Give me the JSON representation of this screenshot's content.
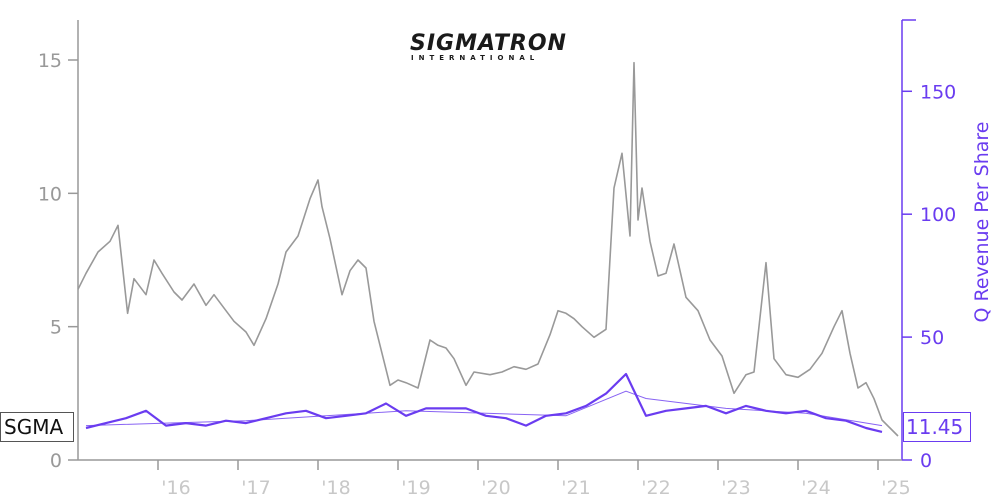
{
  "logo": {
    "main": "SIGMATRON",
    "sub": "INTERNATIONAL"
  },
  "ticker": "SGMA",
  "last_value": "11.45",
  "colors": {
    "price": "#999999",
    "revenue": "#6a3cf0",
    "revenue_light": "#b9a2f5"
  },
  "chart_data": {
    "type": "line",
    "ylabel_right": "Q Revenue Per Share",
    "x_ticks": [
      "'16",
      "'17",
      "'18",
      "'19",
      "'20",
      "'21",
      "'22",
      "'23",
      "'24",
      "'25"
    ],
    "x_tick_years": [
      2016,
      2017,
      2018,
      2019,
      2020,
      2021,
      2022,
      2023,
      2024,
      2025
    ],
    "x_range": [
      2015.0,
      2025.3
    ],
    "y_left": {
      "range": [
        0,
        16.5
      ],
      "ticks": [
        0,
        5,
        10,
        15
      ]
    },
    "y_right": {
      "range": [
        0,
        179
      ],
      "ticks": [
        0,
        50,
        100,
        150
      ]
    },
    "series": [
      {
        "axis": "left",
        "x": [
          2015.0,
          2015.1,
          2015.25,
          2015.4,
          2015.5,
          2015.62,
          2015.7,
          2015.85,
          2015.95,
          2016.05,
          2016.2,
          2016.3,
          2016.45,
          2016.6,
          2016.7,
          2016.85,
          2016.95,
          2017.1,
          2017.2,
          2017.35,
          2017.5,
          2017.6,
          2017.75,
          2017.9,
          2018.0,
          2018.05,
          2018.15,
          2018.3,
          2018.4,
          2018.5,
          2018.6,
          2018.7,
          2018.8,
          2018.9,
          2019.0,
          2019.1,
          2019.25,
          2019.4,
          2019.5,
          2019.6,
          2019.7,
          2019.85,
          2019.95,
          2020.15,
          2020.3,
          2020.45,
          2020.6,
          2020.75,
          2020.9,
          2021.0,
          2021.1,
          2021.2,
          2021.3,
          2021.45,
          2021.6,
          2021.7,
          2021.8,
          2021.9,
          2021.95,
          2022.0,
          2022.05,
          2022.15,
          2022.25,
          2022.35,
          2022.45,
          2022.6,
          2022.75,
          2022.9,
          2023.05,
          2023.2,
          2023.35,
          2023.45,
          2023.6,
          2023.7,
          2023.85,
          2024.0,
          2024.15,
          2024.3,
          2024.45,
          2024.55,
          2024.65,
          2024.75,
          2024.85,
          2024.95,
          2025.05,
          2025.15,
          2025.25
        ],
        "values": [
          6.4,
          7.0,
          7.8,
          8.2,
          8.8,
          5.5,
          6.8,
          6.2,
          7.5,
          7.0,
          6.3,
          6.0,
          6.6,
          5.8,
          6.2,
          5.6,
          5.2,
          4.8,
          4.3,
          5.3,
          6.6,
          7.8,
          8.4,
          9.8,
          10.5,
          9.5,
          8.3,
          6.2,
          7.1,
          7.5,
          7.2,
          5.2,
          4.0,
          2.8,
          3.0,
          2.9,
          2.7,
          4.5,
          4.3,
          4.2,
          3.8,
          2.8,
          3.3,
          3.2,
          3.3,
          3.5,
          3.4,
          3.6,
          4.7,
          5.6,
          5.5,
          5.3,
          5.0,
          4.6,
          4.9,
          10.2,
          11.5,
          8.4,
          14.9,
          9.0,
          10.2,
          8.2,
          6.9,
          7.0,
          8.1,
          6.1,
          5.6,
          4.5,
          3.9,
          2.5,
          3.2,
          3.3,
          7.4,
          3.8,
          3.2,
          3.1,
          3.4,
          4.0,
          5.0,
          5.6,
          4.0,
          2.7,
          2.9,
          2.3,
          1.5,
          1.2,
          0.9
        ]
      },
      {
        "axis": "right",
        "x": [
          2015.1,
          2015.35,
          2015.6,
          2015.85,
          2016.1,
          2016.35,
          2016.6,
          2016.85,
          2017.1,
          2017.35,
          2017.6,
          2017.85,
          2018.1,
          2018.35,
          2018.6,
          2018.85,
          2019.1,
          2019.35,
          2019.6,
          2019.85,
          2020.1,
          2020.35,
          2020.6,
          2020.85,
          2021.1,
          2021.35,
          2021.6,
          2021.85,
          2022.1,
          2022.35,
          2022.6,
          2022.85,
          2023.1,
          2023.35,
          2023.6,
          2023.85,
          2024.1,
          2024.35,
          2024.6,
          2024.85,
          2025.05
        ],
        "values": [
          13,
          15,
          17,
          20,
          14,
          15,
          14,
          16,
          15,
          17,
          19,
          20,
          17,
          18,
          19,
          23,
          18,
          21,
          21,
          21,
          18,
          17,
          14,
          18,
          19,
          22,
          27,
          35,
          18,
          20,
          21,
          22,
          19,
          22,
          20,
          19,
          20,
          17,
          16,
          13,
          11.45
        ]
      },
      {
        "axis": "right",
        "style": "trend",
        "x": [
          2015.1,
          2016.1,
          2017.1,
          2018.1,
          2019.1,
          2020.1,
          2021.1,
          2021.85,
          2022.1,
          2023.1,
          2024.1,
          2025.05
        ],
        "values": [
          14,
          15,
          16,
          18,
          20,
          19,
          18,
          28,
          25,
          21,
          19,
          14
        ]
      }
    ]
  }
}
